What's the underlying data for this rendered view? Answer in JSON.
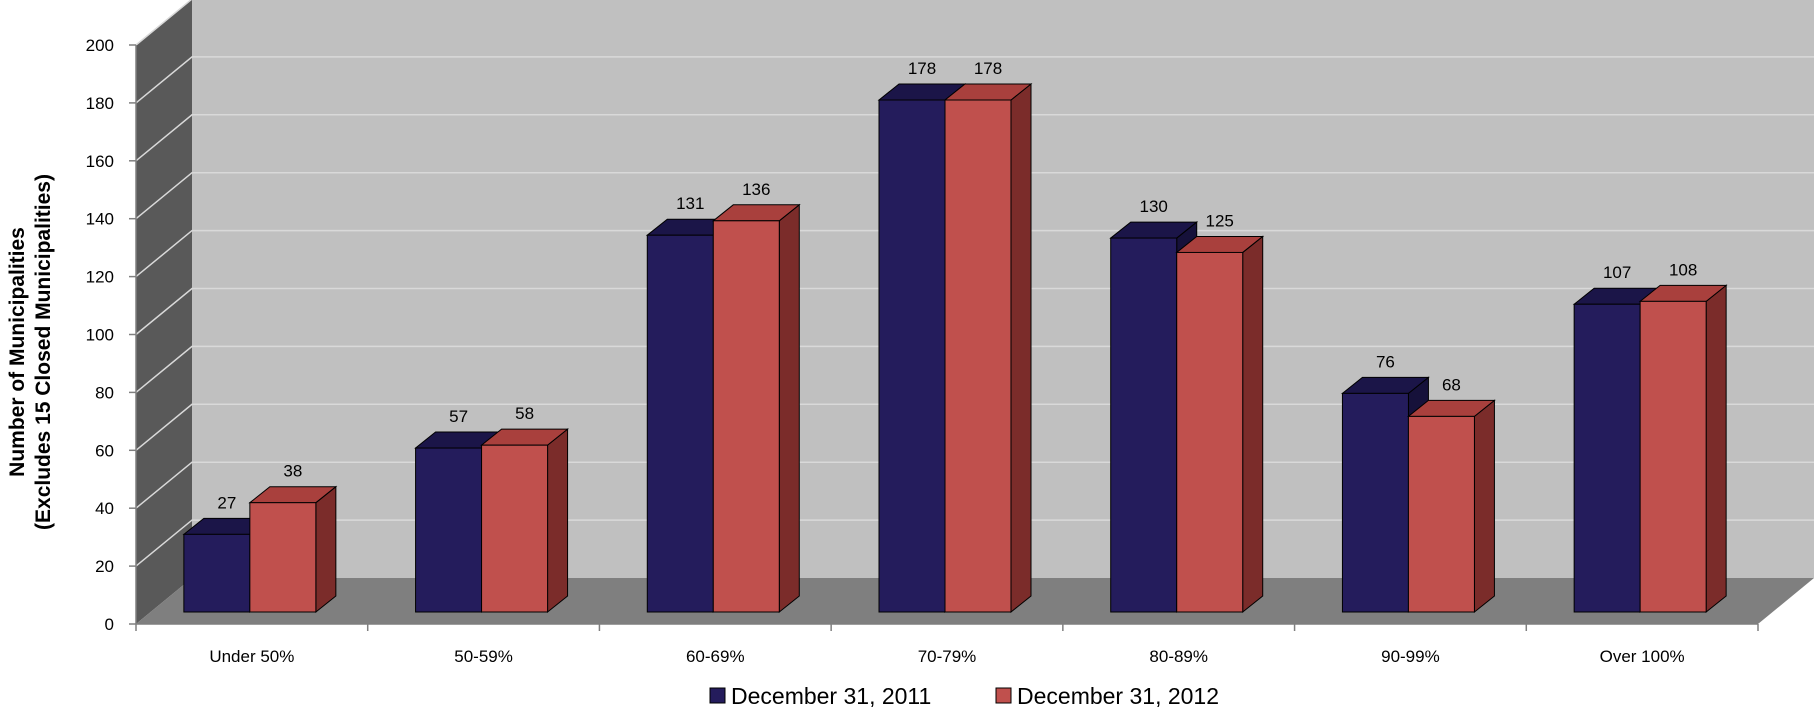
{
  "chart_data": {
    "type": "bar",
    "title": "",
    "xlabel": "",
    "ylabel_line1": "Number of Municipalities",
    "ylabel_line2": "(Excludes 15 Closed Municipalities)",
    "ylim": [
      0,
      200
    ],
    "yticks": [
      0,
      20,
      40,
      60,
      80,
      100,
      120,
      140,
      160,
      180,
      200
    ],
    "categories": [
      "Under 50%",
      "50-59%",
      "60-69%",
      "70-79%",
      "80-89%",
      "90-99%",
      "Over 100%"
    ],
    "series": [
      {
        "name": "December 31, 2011",
        "values": [
          27,
          57,
          131,
          178,
          130,
          76,
          107
        ],
        "color": "#241c5c",
        "top_color": "#1b1548",
        "side_color": "#16113a"
      },
      {
        "name": "December 31, 2012",
        "values": [
          38,
          58,
          136,
          178,
          125,
          68,
          108
        ],
        "color": "#c0504d",
        "top_color": "#a9403d",
        "side_color": "#7b2c2a"
      }
    ],
    "grid": true,
    "three_d": true,
    "legend_position": "bottom",
    "colors": {
      "back_wall": "#c0c0c0",
      "side_wall": "#595959",
      "floor": "#7f7f7f",
      "gridline": "#d9d9d9"
    }
  }
}
